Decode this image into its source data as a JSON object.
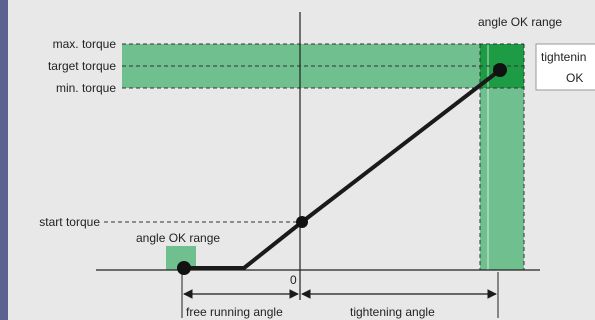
{
  "labels": {
    "angle_ok_range_top": "angle OK range",
    "angle_ok_range_bottom": "angle OK range",
    "max_torque": "max. torque",
    "target_torque": "target torque",
    "min_torque": "min. torque",
    "start_torque": "start torque",
    "zero": "0",
    "tightening_ok_line1": "tightenin",
    "tightening_ok_line2": "OK",
    "free_running_angle": "free running angle",
    "tightening_angle": "tightening angle"
  },
  "colors": {
    "background": "#e8e8e8",
    "band_fill": "#6fbf8f",
    "band_dark": "#1d9c45",
    "dashed": "#333333",
    "curve": "#1a1a1a",
    "left_bar": "#5b6291"
  },
  "icons": {
    "left_edge": "vertical-accent-bar",
    "dimension_arrows": "double-arrow"
  }
}
